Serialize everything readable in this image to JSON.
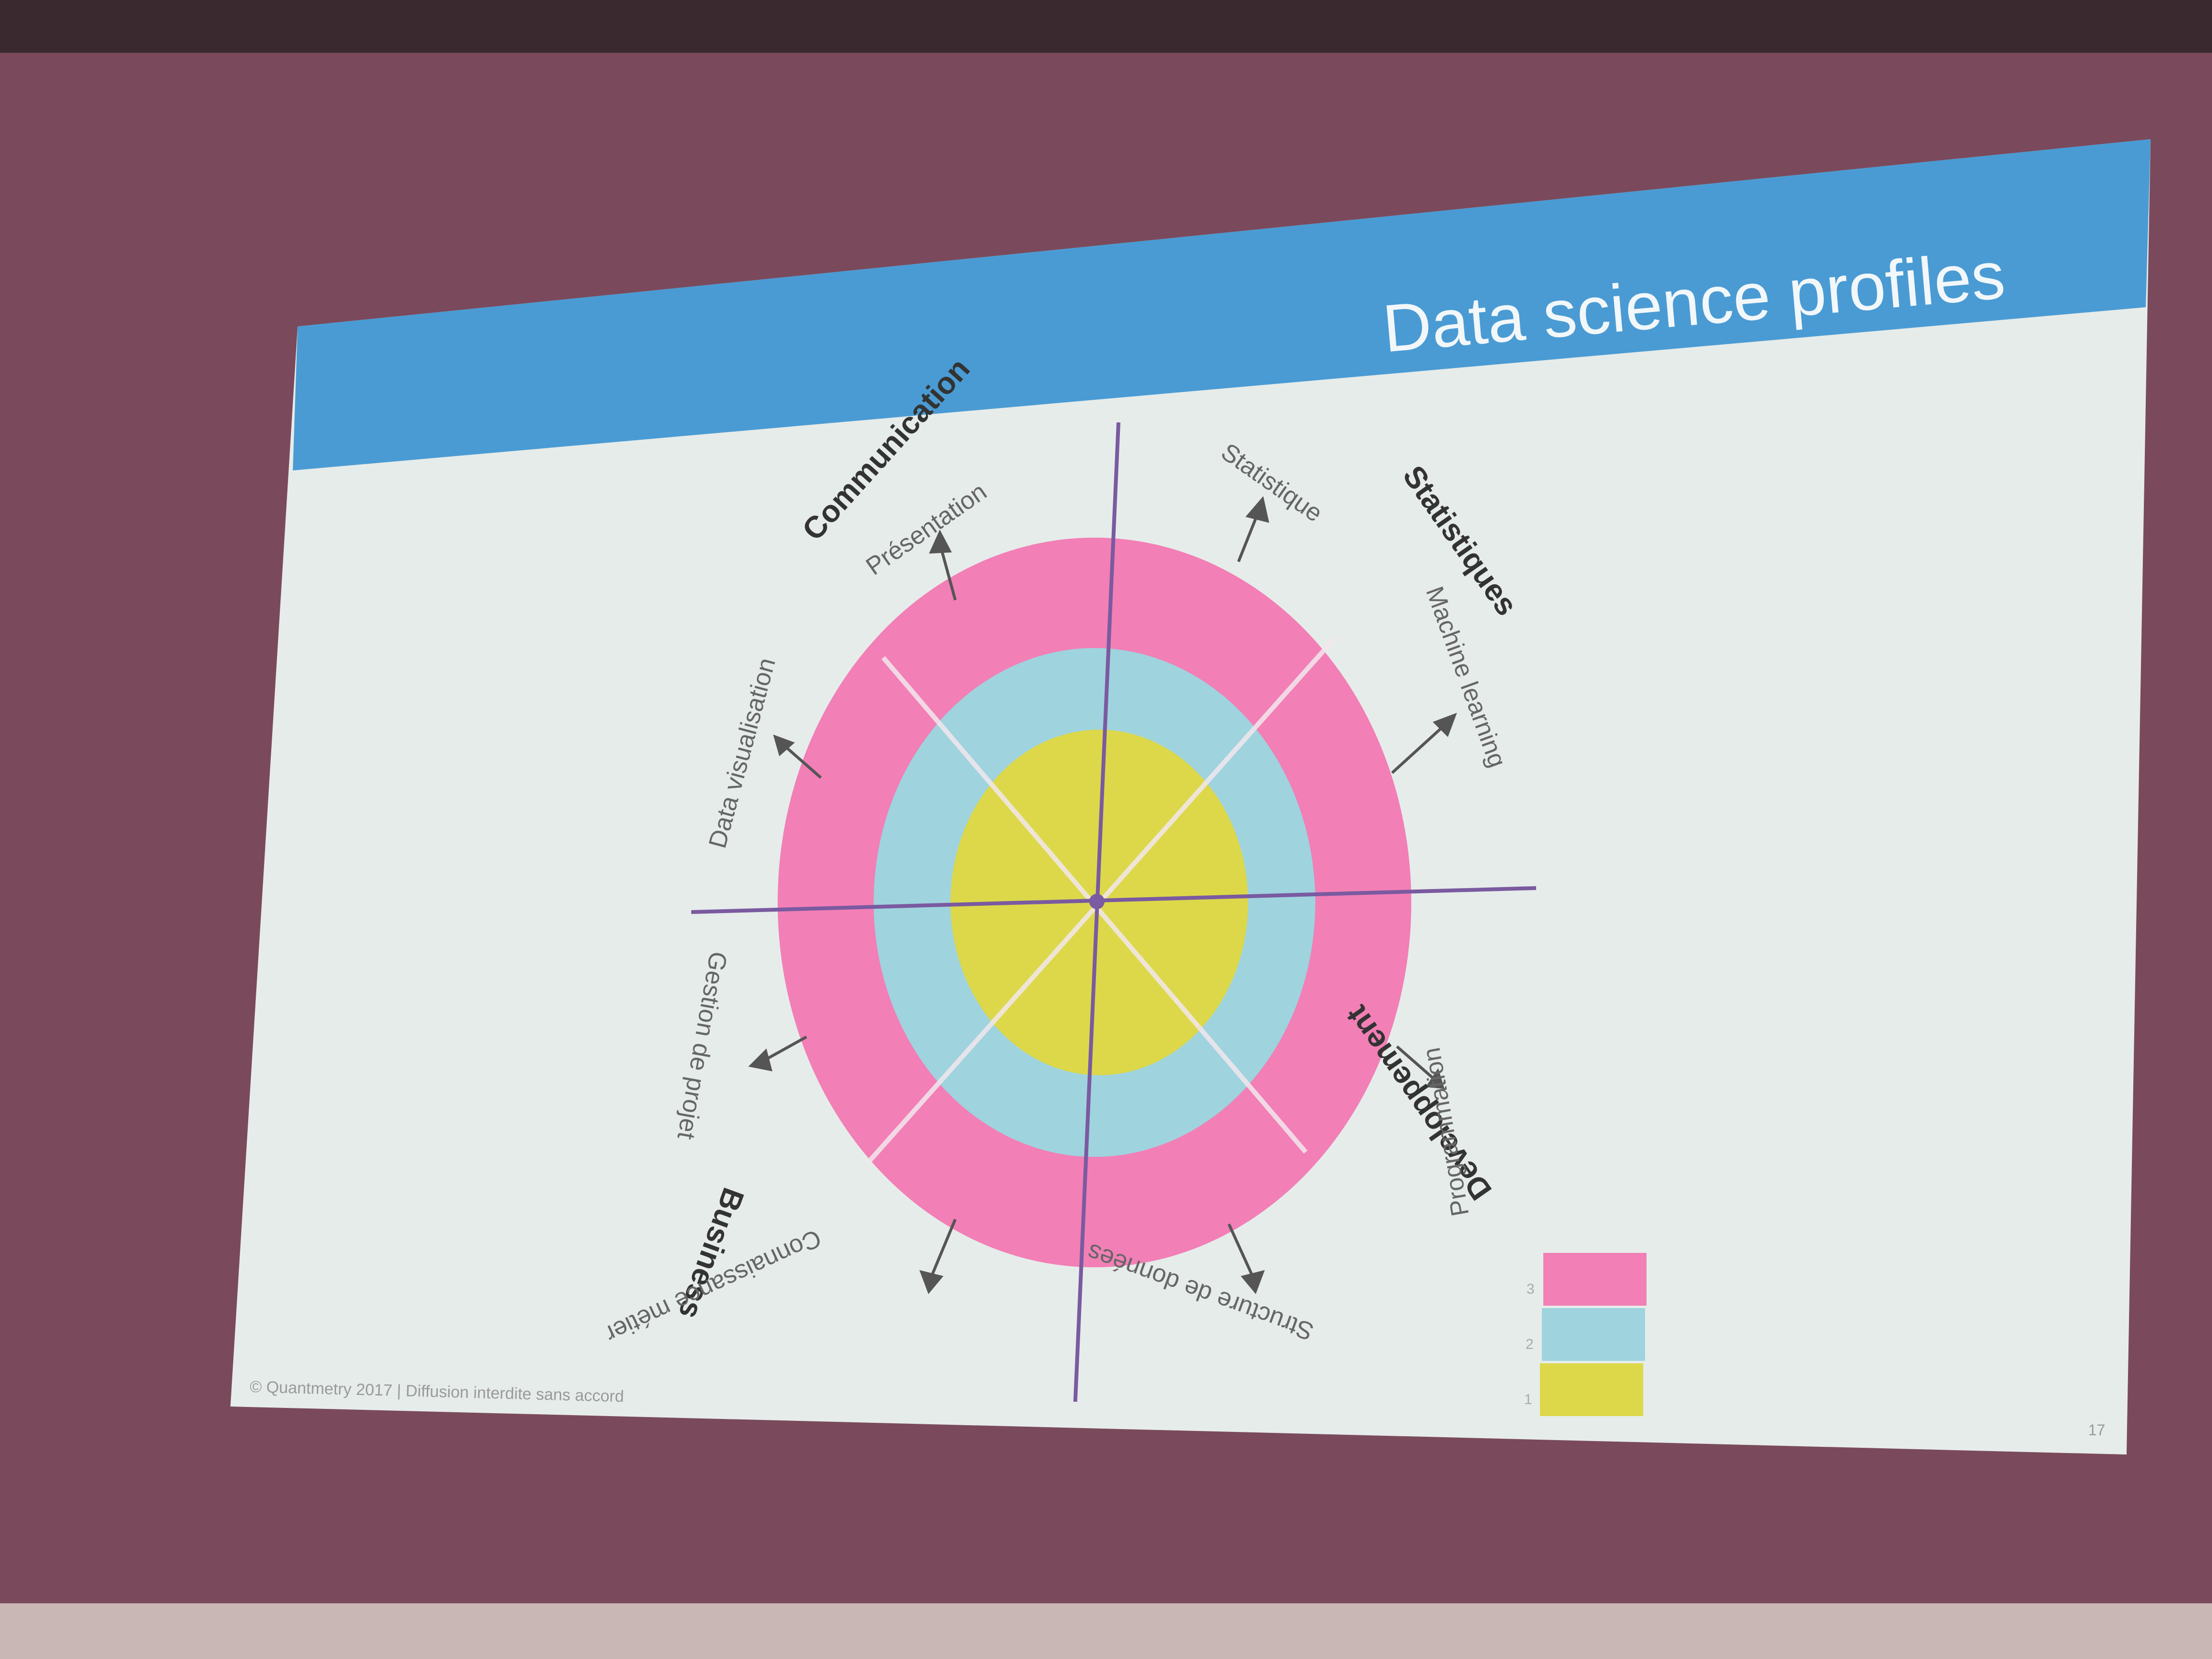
{
  "slide": {
    "title": "Data science profiles",
    "copyright": "© Quantmetry 2017 | Diffusion interdite sans accord",
    "page_number": "17"
  },
  "diagram": {
    "colors": {
      "header": "#4a9bd3",
      "level3": "#f27fb6",
      "level2": "#9fd3de",
      "level1": "#dcd84a",
      "axis": "#7a5aa0"
    },
    "quadrants": [
      {
        "name": "Communication"
      },
      {
        "name": "Statistiques"
      },
      {
        "name": "Developpement"
      },
      {
        "name": "Business"
      }
    ],
    "outer_labels": [
      "Présentation",
      "Statistique",
      "Machine learning",
      "Programmation",
      "Structure de données",
      "Connaissance métier",
      "Gestion de projet",
      "Data visualisation"
    ],
    "legend": [
      {
        "level": "3",
        "color": "#f27fb6"
      },
      {
        "level": "2",
        "color": "#9fd3de"
      },
      {
        "level": "1",
        "color": "#dcd84a"
      }
    ]
  }
}
